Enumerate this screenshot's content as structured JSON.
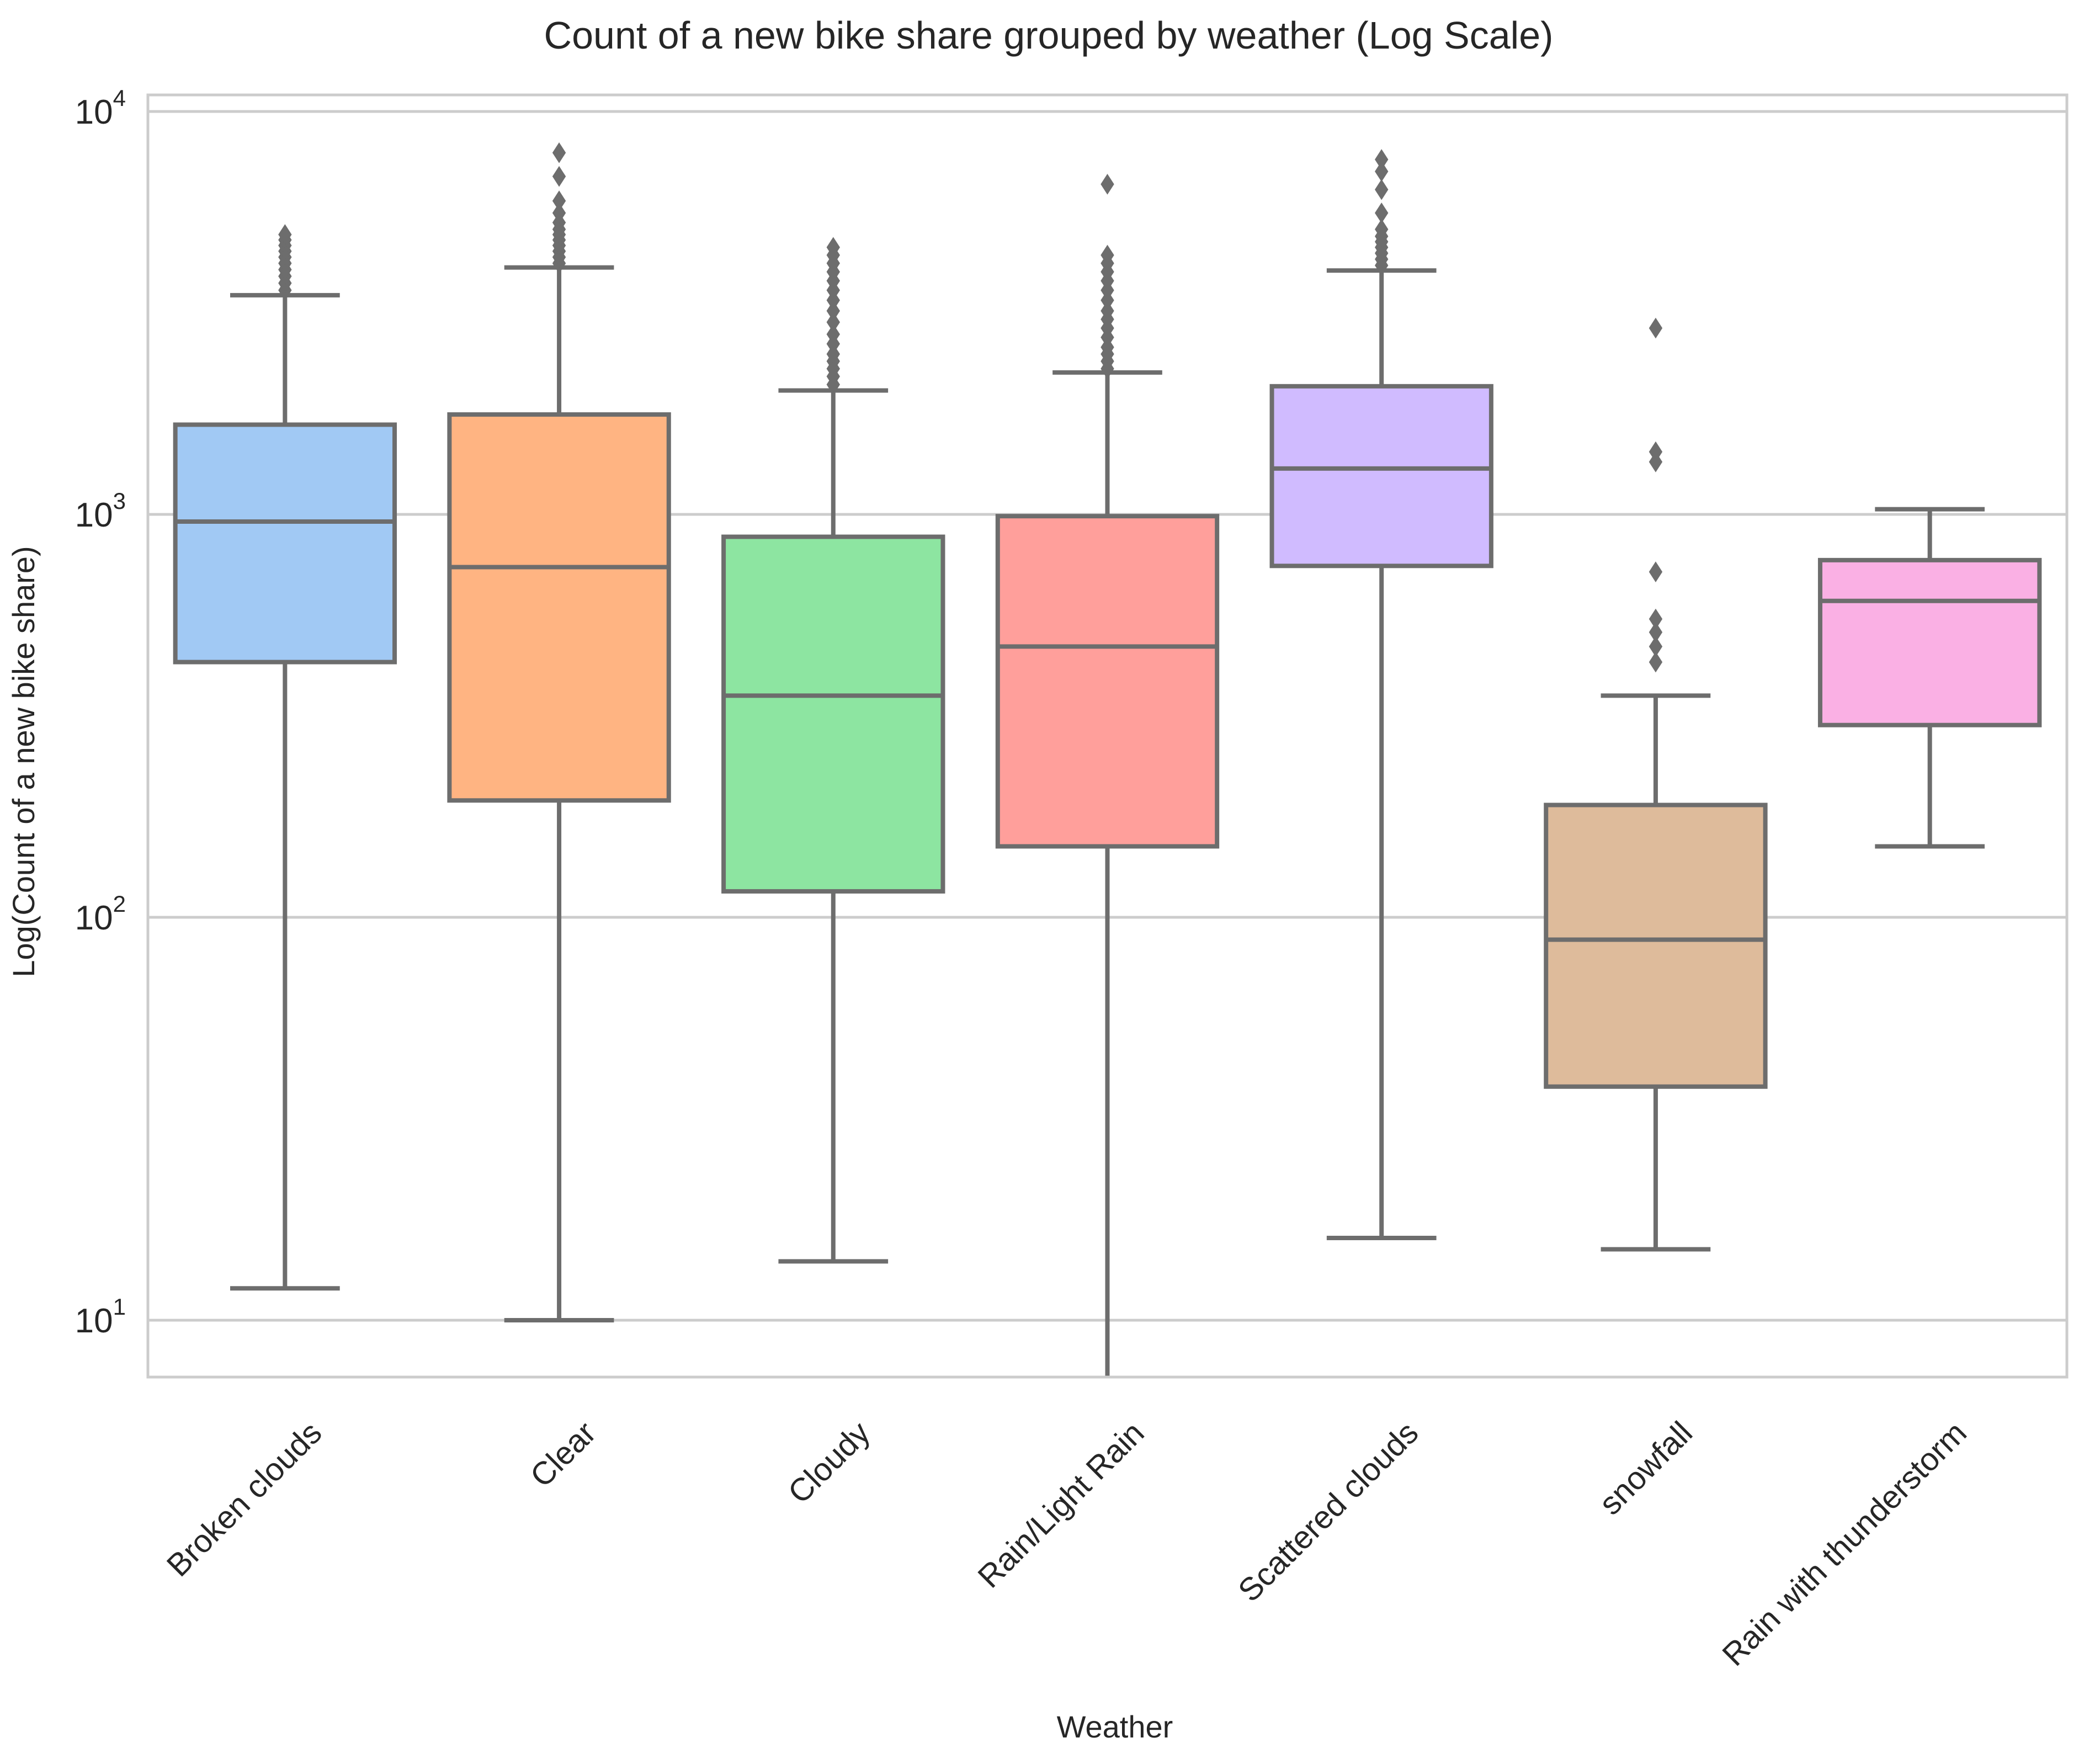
{
  "chart_data": {
    "type": "box",
    "title": "Count of a new bike share grouped by weather (Log Scale)",
    "xlabel": "Weather",
    "ylabel": "Log(Count of a new bike share)",
    "yscale": "log",
    "ylim": [
      7,
      10000
    ],
    "yticks": [
      {
        "value": 10,
        "base": "10",
        "exp": "1"
      },
      {
        "value": 100,
        "base": "10",
        "exp": "2"
      },
      {
        "value": 1000,
        "base": "10",
        "exp": "3"
      },
      {
        "value": 10000,
        "base": "10",
        "exp": "4"
      }
    ],
    "grid": "horizontal",
    "categories": [
      "Broken clouds",
      "Clear",
      "Cloudy",
      "Rain/Light Rain",
      "Scattered clouds",
      "snowfall",
      "Rain with thunderstorm"
    ],
    "boxes": [
      {
        "name": "Broken clouds",
        "color": "#a1c9f4",
        "whisker_low": 12,
        "q1": 430,
        "median": 960,
        "q3": 1670,
        "whisker_high": 3500,
        "outliers": [
          3600,
          3750,
          3900,
          4050,
          4200,
          4350,
          4500,
          4650,
          4800,
          4950
        ]
      },
      {
        "name": "Clear",
        "color": "#ffb482",
        "whisker_low": 10,
        "q1": 195,
        "median": 740,
        "q3": 1770,
        "whisker_high": 4100,
        "outliers": [
          4200,
          4350,
          4500,
          4650,
          4800,
          4950,
          5100,
          5300,
          5600,
          6000,
          6900,
          7900
        ]
      },
      {
        "name": "Cloudy",
        "color": "#8de5a1",
        "whisker_low": 14,
        "q1": 116,
        "median": 355,
        "q3": 880,
        "whisker_high": 2030,
        "outliers": [
          2100,
          2200,
          2300,
          2400,
          2500,
          2650,
          2800,
          3000,
          3200,
          3400,
          3600,
          3800,
          4000,
          4200,
          4400,
          4600
        ]
      },
      {
        "name": "Rain/Light Rain",
        "color": "#ff9f9b",
        "whisker_low": 7,
        "q1": 150,
        "median": 470,
        "q3": 990,
        "whisker_high": 2250,
        "outliers": [
          2300,
          2400,
          2500,
          2600,
          2750,
          2900,
          3050,
          3200,
          3400,
          3600,
          3800,
          4000,
          4200,
          4400,
          6600
        ]
      },
      {
        "name": "Scattered clouds",
        "color": "#d0bbff",
        "whisker_low": 16,
        "q1": 745,
        "median": 1300,
        "q3": 2080,
        "whisker_high": 4030,
        "outliers": [
          4150,
          4300,
          4450,
          4600,
          4750,
          4900,
          5100,
          5600,
          6400,
          7100,
          7600
        ]
      },
      {
        "name": "snowfall",
        "color": "#debb9b",
        "whisker_low": 15,
        "q1": 38,
        "median": 88,
        "q3": 190,
        "whisker_high": 355,
        "outliers": [
          430,
          470,
          510,
          550,
          720,
          1350,
          1430,
          2900
        ]
      },
      {
        "name": "Rain with thunderstorm",
        "color": "#fab0e4",
        "whisker_low": 150,
        "q1": 300,
        "median": 610,
        "q3": 770,
        "whisker_high": 1030,
        "outliers": []
      }
    ]
  }
}
